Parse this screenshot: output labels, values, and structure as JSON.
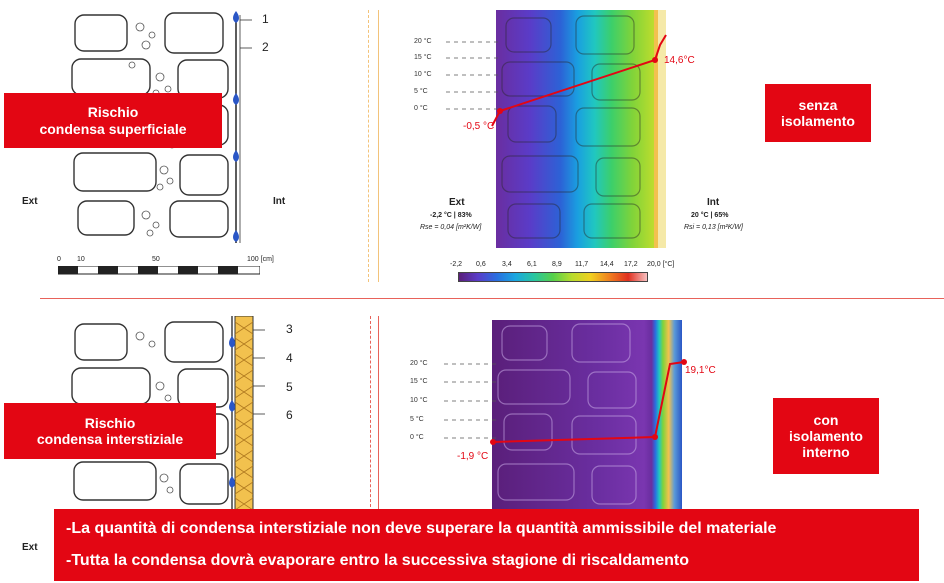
{
  "top_panel": {
    "wall_callouts": [
      "1",
      "2"
    ],
    "risk_label_line1": "Rischio",
    "risk_label_line2": "condensa superficiale",
    "ext_label": "Ext",
    "int_label": "Int",
    "scale_ticks": [
      "0",
      "10",
      "50",
      "100 [cm]"
    ],
    "temp_axis": [
      "20 °C",
      "15 °C",
      "10 °C",
      "5 °C",
      "0 °C"
    ],
    "ext_temp": "-0,5 °C",
    "int_temp": "14,6°C",
    "thermo_ext_title": "Ext",
    "thermo_ext_cond": "-2,2 °C | 83%",
    "thermo_ext_rs": "Rse = 0,04 [m²K/W]",
    "thermo_int_title": "Int",
    "thermo_int_cond": "20 °C | 65%",
    "thermo_int_rs": "Rsi = 0,13 [m²K/W]",
    "colorbar_ticks": [
      "-2,2",
      "0,6",
      "3,4",
      "6,1",
      "8,9",
      "11,7",
      "14,4",
      "17,2",
      "20,0 [°C]"
    ],
    "status_line1": "senza",
    "status_line2": "isolamento"
  },
  "bottom_panel": {
    "wall_callouts": [
      "3",
      "4",
      "5",
      "6"
    ],
    "risk_label_line1": "Rischio",
    "risk_label_line2": "condensa interstiziale",
    "ext_label": "Ext",
    "temp_axis": [
      "20 °C",
      "15 °C",
      "10 °C",
      "5 °C",
      "0 °C"
    ],
    "ext_temp": "-1,9 °C",
    "int_temp": "19,1°C",
    "status_line1": "con",
    "status_line2": "isolamento",
    "status_line3": "interno"
  },
  "notes": [
    "-La quantità di condensa interstiziale non deve superare la quantità ammissibile del materiale",
    "-Tutta la condensa dovrà evaporare entro la successiva stagione di riscaldamento"
  ],
  "colors": {
    "accent_red": "#e30613",
    "divider_red": "#e8625a",
    "divider_orange": "#f3c37a",
    "insulation_yellow": "#f2c14e"
  }
}
